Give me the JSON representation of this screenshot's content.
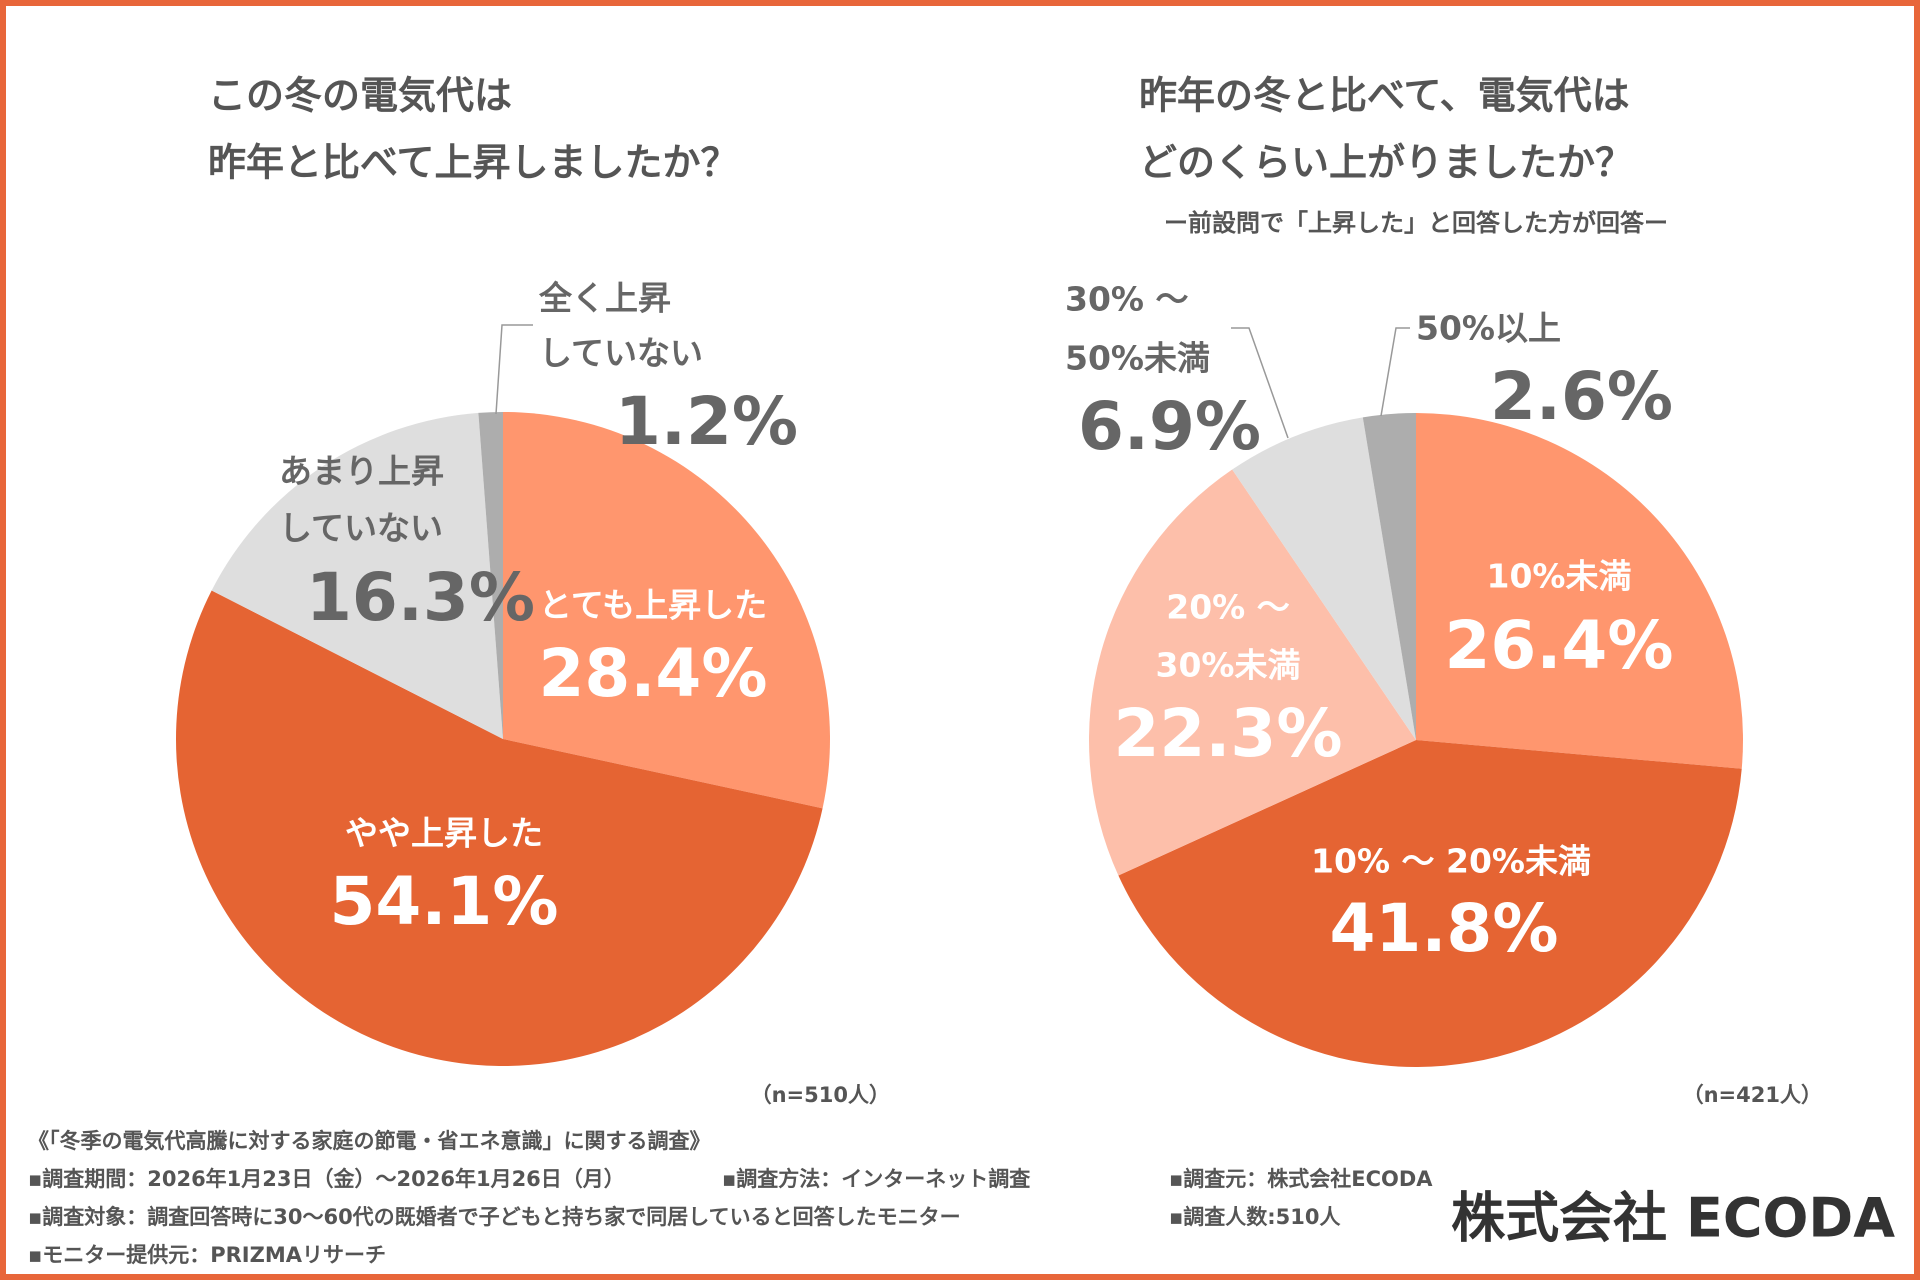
{
  "colors": {
    "border": "#E8663A",
    "dark_orange": "#E56433",
    "light_orange": "#FF966E",
    "pale_orange": "#FDBFAA",
    "light_gray": "#DEDEDE",
    "mid_gray": "#ADADAD"
  },
  "chart_data": [
    {
      "type": "pie",
      "title": [
        "この冬の電気代は",
        "昨年と比べて上昇しましたか？"
      ],
      "start": "12 o'clock",
      "direction": "clockwise",
      "sample": "（n=510人）",
      "slices": [
        {
          "label": "とても上昇した",
          "value": 28.4,
          "pct_label": "28.4%",
          "color": "#FF966E"
        },
        {
          "label": "やや上昇した",
          "value": 54.1,
          "pct_label": "54.1%",
          "color": "#E56433"
        },
        {
          "label": [
            "あまり上昇",
            "していない"
          ],
          "value": 16.3,
          "pct_label": "16.3%",
          "color": "#DEDEDE"
        },
        {
          "label": [
            "全く上昇",
            "していない"
          ],
          "value": 1.2,
          "pct_label": "1.2%",
          "color": "#ADADAD"
        }
      ]
    },
    {
      "type": "pie",
      "title": [
        "昨年の冬と比べて、電気代は",
        "どのくらい上がりましたか？"
      ],
      "subtitle": "ー前設問で「上昇した」と回答した方が回答ー",
      "start": "12 o'clock",
      "direction": "clockwise",
      "sample": "（n=421人）",
      "slices": [
        {
          "label": "10%未満",
          "value": 26.4,
          "pct_label": "26.4%",
          "color": "#FF966E"
        },
        {
          "label": "10% ～ 20%未満",
          "value": 41.8,
          "pct_label": "41.8%",
          "color": "#E56433"
        },
        {
          "label": [
            "20% ～",
            "30%未満"
          ],
          "value": 22.3,
          "pct_label": "22.3%",
          "color": "#FDBFAA"
        },
        {
          "label": [
            "30% ～",
            "50%未満"
          ],
          "value": 6.9,
          "pct_label": "6.9%",
          "color": "#DEDEDE"
        },
        {
          "label": "50%以上",
          "value": 2.6,
          "pct_label": "2.6%",
          "color": "#ADADAD"
        }
      ]
    }
  ],
  "footer": {
    "survey_title": "《「冬季の電気代高騰に対する家庭の節電・省エネ意識」に関する調査》",
    "period": "▪調査期間：2026年1月23日（金）～2026年1月26日（月）",
    "method": "▪調査方法：インターネット調査",
    "source": "▪調査元：株式会社ECODA",
    "target": "▪調査対象：調査回答時に30～60代の既婚者で子どもと持ち家で同居していると回答したモニター",
    "count": "▪調査人数:510人",
    "provider": "▪モニター提供元：PRIZMAリサーチ",
    "logo": "株式会社 ECODA"
  }
}
